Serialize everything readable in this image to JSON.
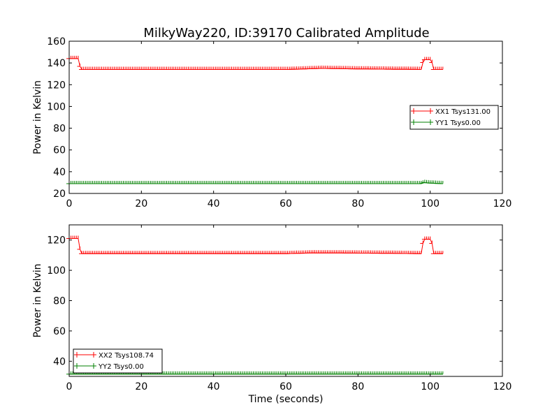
{
  "title": "MilkyWay220, ID:39170 Calibrated Amplitude",
  "colors": {
    "xx": "#ff0000",
    "yy": "#008000"
  },
  "chart_data": [
    {
      "type": "line",
      "xlabel": "",
      "ylabel": "Power in Kelvin",
      "xlim": [
        0,
        120
      ],
      "ylim": [
        20,
        160
      ],
      "xticks": [
        0,
        20,
        40,
        60,
        80,
        100,
        120
      ],
      "yticks": [
        20,
        40,
        60,
        80,
        100,
        120,
        140,
        160
      ],
      "grid": false,
      "legend_position": "right",
      "series": [
        {
          "name": "XX1 Tsys131.00",
          "color": "#ff0000",
          "segments": [
            [
              0,
              144
            ],
            [
              2.5,
              144
            ],
            [
              3.2,
              134
            ],
            [
              61,
              134
            ],
            [
              70,
              135
            ],
            [
              80,
              134.5
            ],
            [
              97.5,
              134
            ],
            [
              98.2,
              143
            ],
            [
              100.3,
              143
            ],
            [
              101,
              134
            ],
            [
              103.5,
              134
            ]
          ]
        },
        {
          "name": "YY1 Tsys0.00",
          "color": "#008000",
          "segments": [
            [
              0,
              29
            ],
            [
              97.5,
              29
            ],
            [
              98.5,
              30
            ],
            [
              100,
              29.5
            ],
            [
              103.5,
              29
            ]
          ]
        }
      ]
    },
    {
      "type": "line",
      "xlabel": "Time (seconds)",
      "ylabel": "Power in Kelvin",
      "xlim": [
        0,
        120
      ],
      "ylim": [
        30,
        130
      ],
      "xticks": [
        0,
        20,
        40,
        60,
        80,
        100,
        120
      ],
      "yticks": [
        40,
        60,
        80,
        100,
        120
      ],
      "grid": false,
      "legend_position": "lower-left",
      "series": [
        {
          "name": "XX2 Tsys108.74",
          "color": "#ff0000",
          "segments": [
            [
              0,
              121
            ],
            [
              2.5,
              121
            ],
            [
              3.2,
              111
            ],
            [
              60,
              111
            ],
            [
              68,
              111.5
            ],
            [
              85,
              111.3
            ],
            [
              97.5,
              111
            ],
            [
              98.2,
              120.5
            ],
            [
              100.3,
              120.5
            ],
            [
              101,
              111
            ],
            [
              103.5,
              111
            ]
          ]
        },
        {
          "name": "YY2 Tsys0.00",
          "color": "#008000",
          "segments": [
            [
              0,
              31.5
            ],
            [
              103.5,
              31.5
            ]
          ]
        }
      ]
    }
  ]
}
